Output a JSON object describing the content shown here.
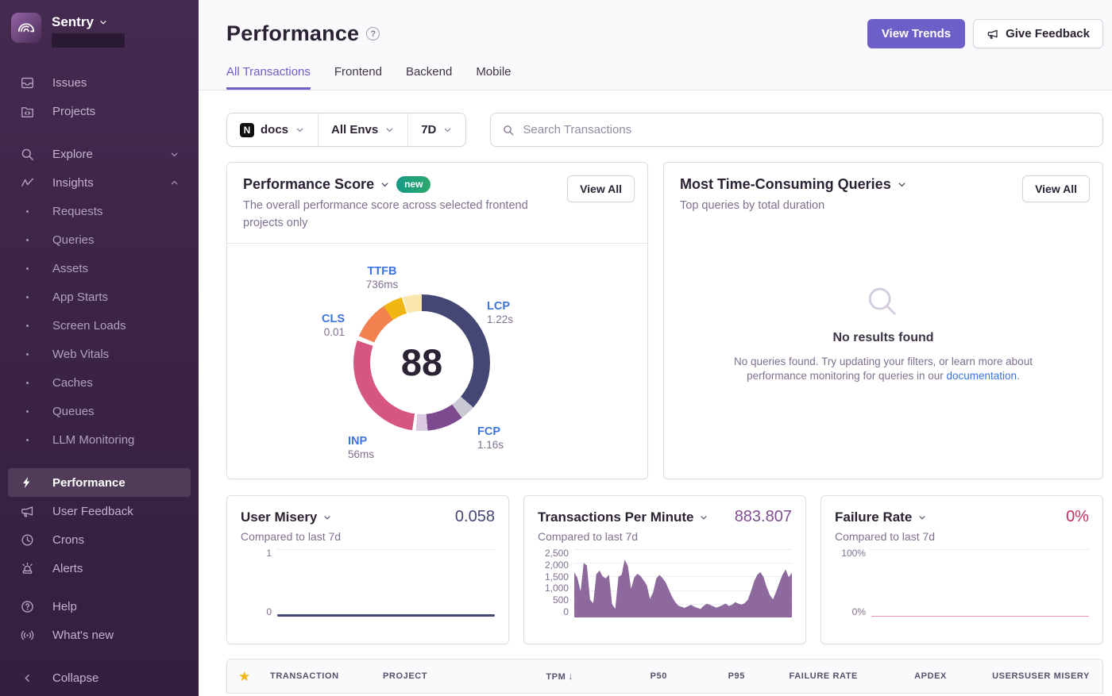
{
  "sidebar": {
    "brand": "Sentry",
    "nav": [
      {
        "label": "Issues"
      },
      {
        "label": "Projects"
      },
      {
        "label": "Explore"
      },
      {
        "label": "Insights"
      },
      {
        "label": "Requests"
      },
      {
        "label": "Queries"
      },
      {
        "label": "Assets"
      },
      {
        "label": "App Starts"
      },
      {
        "label": "Screen Loads"
      },
      {
        "label": "Web Vitals"
      },
      {
        "label": "Caches"
      },
      {
        "label": "Queues"
      },
      {
        "label": "LLM Monitoring"
      },
      {
        "label": "Performance",
        "active": true
      },
      {
        "label": "User Feedback"
      },
      {
        "label": "Crons"
      },
      {
        "label": "Alerts"
      },
      {
        "label": "Help"
      },
      {
        "label": "What's new"
      },
      {
        "label": "Collapse"
      }
    ]
  },
  "header": {
    "title": "Performance",
    "view_trends": "View Trends",
    "give_feedback": "Give Feedback"
  },
  "tabs": {
    "items": [
      {
        "label": "All Transactions",
        "active": true
      },
      {
        "label": "Frontend"
      },
      {
        "label": "Backend"
      },
      {
        "label": "Mobile"
      }
    ]
  },
  "filters": {
    "project_platform": "N",
    "project": "docs",
    "environment": "All Envs",
    "date_range": "7D",
    "search_placeholder": "Search Transactions"
  },
  "performance_score_card": {
    "title": "Performance Score",
    "badge": "new",
    "subtitle": "The overall performance score across selected frontend projects only",
    "view_all": "View All"
  },
  "queries_card": {
    "title": "Most Time-Consuming Queries",
    "subtitle": "Top queries by total duration",
    "view_all": "View All",
    "empty_title": "No results found",
    "empty_text": "No queries found. Try updating your filters, or learn more about performance monitoring for queries in our ",
    "empty_link": "documentation",
    "empty_period": "."
  },
  "user_misery_card": {
    "title": "User Misery",
    "value": "0.058",
    "subtitle": "Compared to last 7d",
    "y_ticks": [
      "1",
      "0"
    ]
  },
  "tpm_card": {
    "title": "Transactions Per Minute",
    "value": "883.807",
    "subtitle": "Compared to last 7d",
    "y_ticks": [
      "2,500",
      "2,000",
      "1,500",
      "1,000",
      "500",
      "0"
    ]
  },
  "failure_card": {
    "title": "Failure Rate",
    "value": "0%",
    "subtitle": "Compared to last 7d",
    "y_ticks": [
      "100%",
      "0%"
    ]
  },
  "table": {
    "columns": [
      "TRANSACTION",
      "PROJECT",
      "TPM",
      "P50",
      "P95",
      "FAILURE RATE",
      "APDEX",
      "USERS",
      "USER MISERY"
    ],
    "sort": {
      "column": "TPM",
      "direction": "desc"
    }
  },
  "colors": {
    "accent_purple": "#6c5fc7",
    "link_blue": "#3c74dd",
    "badge_green_left": "#159a85",
    "badge_green_right": "#2fa86e",
    "star_gold": "#f2b712",
    "user_misery_series": "#444674",
    "tpm_series": "#7d548f",
    "failure_series": "#d4426e"
  },
  "chart_data": [
    {
      "type": "pie",
      "variant": "donut-gauge",
      "title": "Performance Score",
      "score": "88",
      "vitals": [
        {
          "name": "TTFB",
          "value": "736ms"
        },
        {
          "name": "LCP",
          "value": "1.22s"
        },
        {
          "name": "CLS",
          "value": "0.01"
        },
        {
          "name": "INP",
          "value": "56ms"
        },
        {
          "name": "FCP",
          "value": "1.16s"
        }
      ],
      "segments": [
        {
          "name": "lcp",
          "color": "#444674",
          "start": 0,
          "end": 131
        },
        {
          "name": "lcp-remainder",
          "color": "#c9c9d6",
          "start": 131,
          "end": 144
        },
        {
          "name": "fcp",
          "color": "#7d4a8d",
          "start": 144,
          "end": 175
        },
        {
          "name": "fcp-remainder",
          "color": "#dbc9e4",
          "start": 175,
          "end": 185
        },
        {
          "name": "inp",
          "color": "#d6567f",
          "start": 188,
          "end": 289
        },
        {
          "name": "cls",
          "color": "#f38150",
          "start": 293,
          "end": 326
        },
        {
          "name": "ttfb",
          "color": "#f0b712",
          "start": 326,
          "end": 343
        },
        {
          "name": "ttfb-remainder",
          "color": "#fae7ad",
          "start": 344,
          "end": 360
        }
      ]
    },
    {
      "type": "area",
      "title": "Transactions Per Minute",
      "current_value": 883.807,
      "ylim": [
        0,
        2500
      ],
      "y_ticks": [
        0,
        500,
        1000,
        1500,
        2000,
        2500
      ],
      "values": [
        1650,
        1450,
        950,
        2000,
        1900,
        650,
        520,
        1580,
        1720,
        1500,
        1430,
        1560,
        480,
        320,
        1490,
        1560,
        2120,
        1880,
        1050,
        1460,
        1600,
        1520,
        1360,
        1180,
        680,
        920,
        1420,
        1560,
        1440,
        1280,
        1010,
        760,
        560,
        430,
        390,
        350,
        410,
        460,
        400,
        350,
        310,
        420,
        500,
        460,
        410,
        360,
        400,
        450,
        510,
        420,
        460,
        560,
        510,
        470,
        520,
        640,
        950,
        1320,
        1560,
        1660,
        1480,
        1110,
        820,
        660,
        940,
        1260,
        1560,
        1760,
        1470,
        1640
      ]
    },
    {
      "type": "line",
      "title": "User Misery",
      "current_value": 0.058,
      "ylim": [
        0,
        1
      ],
      "values": [
        0.05,
        0.05
      ]
    },
    {
      "type": "line",
      "title": "Failure Rate",
      "current_value": 0,
      "ylim": [
        0,
        100
      ],
      "values": [
        0,
        0
      ]
    }
  ]
}
